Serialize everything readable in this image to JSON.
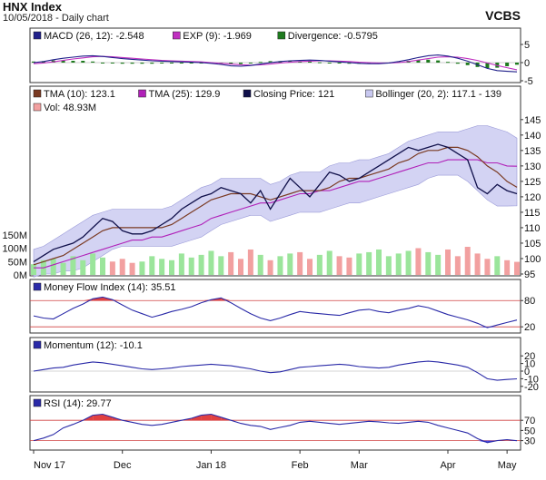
{
  "header": {
    "title": "HNX Index",
    "subtitle": "10/05/2018 - Daily chart",
    "brand": "VCBS"
  },
  "colors": {
    "panel_bg": "#ffffff",
    "band_fill": "#c8c8f0",
    "price": "#10104a",
    "tma10": "#7a3a22",
    "tma25": "#b020b8",
    "macd": "#20208a",
    "exp": "#c030c0",
    "divergence": "#1e7a1e",
    "vol_up": "#9be59b",
    "vol_down": "#f2a0a0",
    "osc_line": "#2a2aa8",
    "overbought_fill": "#e04040",
    "oversold_fill": "#4040e0",
    "threshold_line": "#d04040"
  },
  "chart_data": [
    {
      "id": "macd",
      "type": "line",
      "legend": [
        {
          "label": "MACD (26, 12): -2.548",
          "color": "#20208a"
        },
        {
          "label": "EXP (9): -1.969",
          "color": "#c030c0"
        },
        {
          "label": "Divergence: -0.5795",
          "color": "#1e7a1e"
        }
      ],
      "y_ticks": [
        "5",
        "0",
        "-5"
      ],
      "ylim": [
        -5,
        6
      ],
      "series": [
        {
          "name": "MACD (26, 12)",
          "values": [
            0.0,
            0.3,
            0.8,
            1.2,
            1.5,
            1.8,
            1.9,
            1.7,
            1.4,
            1.1,
            0.9,
            0.7,
            0.5,
            0.4,
            0.3,
            0.2,
            0.1,
            0.0,
            -0.2,
            -0.5,
            -0.9,
            -1.0,
            -0.8,
            -0.4,
            0.0,
            0.3,
            0.5,
            0.6,
            0.7,
            0.6,
            0.4,
            0.2,
            0.0,
            -0.2,
            -0.3,
            -0.3,
            -0.1,
            0.3,
            0.8,
            1.4,
            1.9,
            2.1,
            1.8,
            1.2,
            0.4,
            -0.6,
            -1.6,
            -2.2,
            -2.4,
            -2.548
          ]
        },
        {
          "name": "EXP (9)",
          "values": [
            -0.3,
            -0.1,
            0.2,
            0.6,
            1.0,
            1.3,
            1.6,
            1.7,
            1.6,
            1.4,
            1.2,
            1.0,
            0.8,
            0.6,
            0.5,
            0.4,
            0.3,
            0.2,
            0.0,
            -0.2,
            -0.4,
            -0.6,
            -0.7,
            -0.6,
            -0.4,
            -0.1,
            0.1,
            0.3,
            0.4,
            0.5,
            0.5,
            0.4,
            0.3,
            0.1,
            0.0,
            -0.1,
            -0.1,
            0.0,
            0.3,
            0.7,
            1.1,
            1.5,
            1.6,
            1.5,
            1.1,
            0.6,
            -0.1,
            -0.8,
            -1.4,
            -1.969
          ]
        },
        {
          "name": "Divergence",
          "type": "bar",
          "values": [
            0.3,
            0.4,
            0.6,
            0.6,
            0.5,
            0.5,
            0.3,
            0.0,
            -0.2,
            -0.3,
            -0.3,
            -0.3,
            -0.3,
            -0.2,
            -0.2,
            -0.2,
            -0.2,
            -0.2,
            -0.2,
            -0.3,
            -0.5,
            -0.4,
            -0.1,
            0.2,
            0.4,
            0.4,
            0.4,
            0.3,
            0.3,
            0.1,
            -0.1,
            -0.2,
            -0.3,
            -0.3,
            -0.3,
            -0.2,
            0.0,
            0.3,
            0.5,
            0.7,
            0.8,
            0.6,
            0.2,
            -0.3,
            -0.7,
            -1.2,
            -1.5,
            -1.4,
            -1.0,
            -0.5795
          ]
        }
      ]
    },
    {
      "id": "price",
      "type": "line",
      "legend": [
        {
          "label": "TMA (10): 123.1",
          "color": "#7a3a22"
        },
        {
          "label": "TMA (25): 129.9",
          "color": "#b020b8"
        },
        {
          "label": "Closing Price: 121",
          "color": "#10104a"
        },
        {
          "label": "Bollinger (20, 2): 117.1 - 139",
          "color": "#c8c8f0"
        },
        {
          "label": "Vol: 48.93M",
          "color": "#f2a0a0"
        }
      ],
      "y_ticks": [
        "145",
        "140",
        "135",
        "130",
        "125",
        "120",
        "115",
        "110",
        "105",
        "100",
        "95"
      ],
      "ylim": [
        95,
        147
      ],
      "vol_ticks": [
        "150M",
        "100M",
        "50M",
        "0M"
      ],
      "vol_max": 200,
      "series": [
        {
          "name": "Closing Price",
          "values": [
            99,
            101,
            103,
            104,
            105,
            107,
            110,
            113,
            112,
            109,
            108,
            108,
            109,
            111,
            113,
            116,
            118,
            120,
            121,
            123,
            122,
            121,
            118,
            122,
            116,
            121,
            126,
            123,
            120,
            124,
            128,
            127,
            125,
            126,
            128,
            130,
            132,
            134,
            136,
            135,
            136,
            137,
            136,
            134,
            132,
            123,
            121,
            124,
            122,
            121
          ]
        },
        {
          "name": "TMA (10)",
          "values": [
            98,
            99,
            100,
            101,
            103,
            105,
            107,
            109,
            110,
            110,
            110,
            110,
            110,
            110,
            111,
            113,
            115,
            117,
            119,
            120,
            121,
            121,
            121,
            120,
            119,
            120,
            121,
            122,
            122,
            122,
            123,
            125,
            126,
            126,
            127,
            128,
            129,
            131,
            132,
            134,
            135,
            135,
            136,
            136,
            135,
            133,
            130,
            128,
            125,
            123.1
          ]
        },
        {
          "name": "TMA (25)",
          "values": [
            97,
            97,
            98,
            99,
            100,
            101,
            102,
            103,
            104,
            105,
            106,
            106,
            107,
            107,
            108,
            109,
            110,
            111,
            113,
            114,
            115,
            116,
            117,
            118,
            118,
            119,
            120,
            121,
            121,
            122,
            122,
            123,
            124,
            125,
            125,
            126,
            127,
            128,
            129,
            130,
            131,
            131,
            132,
            132,
            132,
            132,
            131,
            131,
            130,
            129.9
          ]
        },
        {
          "name": "Bollinger Upper",
          "values": [
            103,
            104,
            106,
            108,
            110,
            112,
            114,
            115,
            116,
            116,
            116,
            116,
            116,
            116,
            117,
            119,
            121,
            123,
            124,
            126,
            126,
            126,
            126,
            126,
            124,
            125,
            127,
            128,
            128,
            128,
            130,
            131,
            131,
            132,
            132,
            133,
            134,
            136,
            138,
            139,
            140,
            141,
            141,
            141,
            142,
            143,
            143,
            142,
            141,
            139
          ]
        },
        {
          "name": "Bollinger Lower",
          "values": [
            94,
            95,
            95,
            96,
            96,
            97,
            99,
            101,
            103,
            104,
            104,
            104,
            104,
            104,
            104,
            105,
            106,
            107,
            109,
            111,
            112,
            113,
            114,
            114,
            112,
            113,
            114,
            115,
            115,
            115,
            116,
            117,
            118,
            118,
            119,
            120,
            121,
            122,
            123,
            124,
            126,
            127,
            127,
            127,
            125,
            122,
            119,
            117,
            117,
            117.1
          ]
        },
        {
          "name": "Vol",
          "type": "bar",
          "values": [
            40,
            55,
            60,
            45,
            70,
            55,
            80,
            65,
            50,
            60,
            45,
            50,
            70,
            60,
            55,
            80,
            65,
            75,
            90,
            70,
            85,
            60,
            95,
            75,
            55,
            70,
            80,
            85,
            60,
            75,
            90,
            70,
            65,
            80,
            85,
            95,
            70,
            80,
            90,
            100,
            85,
            75,
            95,
            70,
            105,
            80,
            60,
            70,
            55,
            48.93
          ]
        }
      ]
    },
    {
      "id": "mfi",
      "type": "line",
      "legend": [
        {
          "label": "Money Flow Index (14): 35.51",
          "color": "#2a2aa8"
        }
      ],
      "y_ticks": [
        "80",
        "20"
      ],
      "ylim": [
        10,
        95
      ],
      "thresholds": [
        80,
        20
      ],
      "series": [
        {
          "name": "Money Flow Index (14)",
          "values": [
            45,
            40,
            38,
            50,
            62,
            72,
            84,
            88,
            82,
            70,
            58,
            50,
            42,
            48,
            55,
            60,
            66,
            75,
            82,
            86,
            75,
            62,
            50,
            40,
            34,
            40,
            48,
            55,
            52,
            50,
            48,
            46,
            52,
            58,
            60,
            55,
            52,
            58,
            62,
            68,
            64,
            56,
            48,
            42,
            36,
            28,
            18,
            24,
            30,
            35.51
          ]
        }
      ]
    },
    {
      "id": "momentum",
      "type": "line",
      "legend": [
        {
          "label": "Momentum (12): -10.1",
          "color": "#2a2aa8"
        }
      ],
      "y_ticks": [
        "20",
        "10",
        "0",
        "-10",
        "-20"
      ],
      "ylim": [
        -25,
        25
      ],
      "series": [
        {
          "name": "Momentum (12)",
          "values": [
            0,
            2,
            4,
            5,
            8,
            10,
            12,
            11,
            9,
            7,
            5,
            3,
            2,
            3,
            4,
            6,
            7,
            8,
            9,
            8,
            7,
            5,
            3,
            0,
            -2,
            -1,
            2,
            5,
            6,
            7,
            8,
            9,
            8,
            6,
            5,
            4,
            5,
            8,
            10,
            12,
            13,
            12,
            10,
            8,
            5,
            -2,
            -10,
            -12,
            -11,
            -10.1
          ]
        }
      ]
    },
    {
      "id": "rsi",
      "type": "line",
      "legend": [
        {
          "label": "RSI (14): 29.77",
          "color": "#2a2aa8"
        }
      ],
      "y_ticks": [
        "70",
        "50",
        "30"
      ],
      "ylim": [
        15,
        90
      ],
      "thresholds": [
        70,
        30
      ],
      "series": [
        {
          "name": "RSI (14)",
          "values": [
            30,
            35,
            42,
            55,
            62,
            70,
            80,
            82,
            76,
            70,
            66,
            62,
            60,
            62,
            66,
            70,
            74,
            80,
            82,
            76,
            70,
            64,
            60,
            58,
            52,
            56,
            60,
            66,
            68,
            66,
            64,
            62,
            64,
            66,
            68,
            67,
            65,
            64,
            66,
            68,
            66,
            60,
            55,
            50,
            45,
            34,
            26,
            30,
            32,
            29.77
          ]
        }
      ]
    }
  ],
  "x_axis": {
    "labels": [
      {
        "text": "Nov 17",
        "index": 0
      },
      {
        "text": "Dec",
        "index": 9
      },
      {
        "text": "Jan 18",
        "index": 18
      },
      {
        "text": "Feb",
        "index": 27
      },
      {
        "text": "Mar",
        "index": 33
      },
      {
        "text": "Apr",
        "index": 42
      },
      {
        "text": "May",
        "index": 48
      }
    ]
  }
}
